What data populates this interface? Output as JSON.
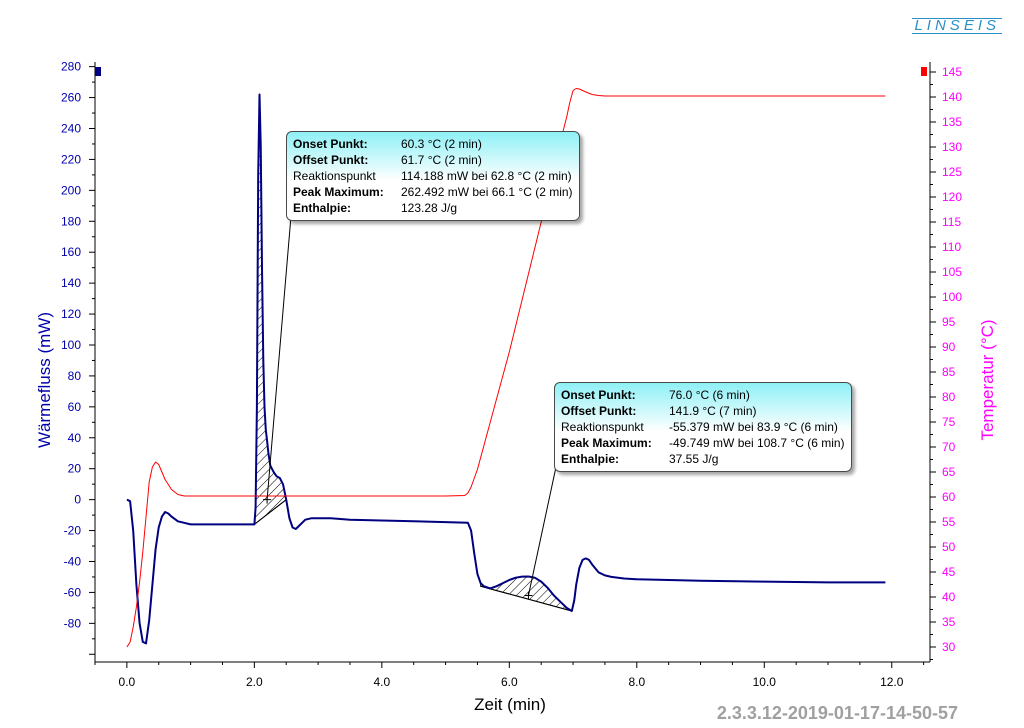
{
  "header": {
    "logo_text": "LINSEIS"
  },
  "footer": {
    "id_text": "2.3.3.12-2019-01-17-14-50-57"
  },
  "colors": {
    "heatflow": "#000080",
    "temperature": "#ff0000",
    "y1_axis": "#0000aa",
    "y2_axis": "#ff00ff",
    "callout": "#8ef0f6"
  },
  "annotations": [
    {
      "rows": [
        {
          "label": "Onset Punkt:",
          "value": "60.3 °C (2 min)",
          "bold": true
        },
        {
          "label": "Offset Punkt:",
          "value": "61.7 °C (2 min)",
          "bold": true
        },
        {
          "label": "Reaktionspunkt",
          "value": "114.188 mW bei 62.8 °C (2 min)",
          "bold": false
        },
        {
          "label": "Peak Maximum:",
          "value": "262.492 mW bei 66.1 °C (2 min)",
          "bold": true
        },
        {
          "label": "Enthalpie:",
          "value": "123.28 J/g",
          "bold": true
        }
      ]
    },
    {
      "rows": [
        {
          "label": "Onset Punkt:",
          "value": "76.0 °C (6 min)",
          "bold": true
        },
        {
          "label": "Offset Punkt:",
          "value": "141.9 °C (7 min)",
          "bold": true
        },
        {
          "label": "Reaktionspunkt",
          "value": "-55.379 mW bei 83.9 °C (6 min)",
          "bold": false
        },
        {
          "label": "Peak Maximum:",
          "value": "-49.749 mW bei 108.7 °C (6 min)",
          "bold": true
        },
        {
          "label": "Enthalpie:",
          "value": "37.55 J/g",
          "bold": true
        }
      ]
    }
  ],
  "chart_data": {
    "type": "line",
    "xlabel": "Zeit (min)",
    "ylabel": "Wärmefluss (mW)",
    "y2label": "Temperatur (°C)",
    "xlim": [
      -0.5,
      12.6
    ],
    "ylim": [
      -105,
      283
    ],
    "y2lim": [
      27,
      147
    ],
    "x_ticks": [
      0,
      2,
      4,
      6,
      8,
      10,
      12
    ],
    "x_tick_labels": [
      "0.0",
      "2.0",
      "4.0",
      "6.0",
      "8.0",
      "10.0",
      "12.0"
    ],
    "y_ticks": [
      -80,
      -60,
      -40,
      -20,
      0,
      20,
      40,
      60,
      80,
      100,
      120,
      140,
      160,
      180,
      200,
      220,
      240,
      260,
      280
    ],
    "y2_ticks": [
      30,
      35,
      40,
      45,
      50,
      55,
      60,
      65,
      70,
      75,
      80,
      85,
      90,
      95,
      100,
      105,
      110,
      115,
      120,
      125,
      130,
      135,
      140,
      145
    ],
    "grid": false,
    "series": [
      {
        "name": "Wärmefluss",
        "axis": "left",
        "x": [
          0,
          0.05,
          0.1,
          0.15,
          0.2,
          0.25,
          0.3,
          0.35,
          0.4,
          0.45,
          0.5,
          0.55,
          0.6,
          0.65,
          0.7,
          0.8,
          0.9,
          1.0,
          1.2,
          1.5,
          1.8,
          2.0,
          2.02,
          2.04,
          2.06,
          2.08,
          2.1,
          2.12,
          2.14,
          2.16,
          2.18,
          2.2,
          2.22,
          2.25,
          2.3,
          2.35,
          2.4,
          2.45,
          2.5,
          2.55,
          2.6,
          2.65,
          2.7,
          2.8,
          2.9,
          3.0,
          3.2,
          3.5,
          4.0,
          4.5,
          5.0,
          5.35,
          5.4,
          5.45,
          5.5,
          5.55,
          5.6,
          5.7,
          5.8,
          5.9,
          6.0,
          6.1,
          6.2,
          6.3,
          6.4,
          6.5,
          6.6,
          6.7,
          6.8,
          6.9,
          6.98,
          7.02,
          7.05,
          7.1,
          7.15,
          7.2,
          7.25,
          7.3,
          7.4,
          7.5,
          7.6,
          7.8,
          8.0,
          8.5,
          9.0,
          10.0,
          11.0,
          11.9
        ],
        "y": [
          0,
          -1,
          -20,
          -55,
          -80,
          -92,
          -93,
          -78,
          -55,
          -32,
          -18,
          -11,
          -8,
          -9,
          -11,
          -14,
          -15,
          -16,
          -16,
          -16,
          -16,
          -16,
          -5,
          60,
          210,
          262,
          230,
          150,
          90,
          60,
          45,
          38,
          30,
          22,
          18,
          15,
          14,
          10,
          0,
          -12,
          -18,
          -19,
          -17,
          -13,
          -12,
          -12,
          -12,
          -13,
          -13.5,
          -14,
          -14.5,
          -15,
          -20,
          -35,
          -48,
          -54,
          -56,
          -57.5,
          -56,
          -54,
          -52,
          -50.5,
          -49.8,
          -49.7,
          -50.5,
          -53,
          -57,
          -62,
          -66,
          -70,
          -72,
          -65,
          -55,
          -44,
          -39,
          -38,
          -39,
          -42,
          -47,
          -49,
          -50,
          -51,
          -51.5,
          -52,
          -52.5,
          -53,
          -53.5,
          -53.5
        ]
      },
      {
        "name": "Temperatur",
        "axis": "right",
        "x": [
          0,
          0.05,
          0.1,
          0.15,
          0.2,
          0.25,
          0.3,
          0.35,
          0.4,
          0.45,
          0.5,
          0.55,
          0.6,
          0.7,
          0.8,
          0.9,
          1.0,
          1.5,
          2.0,
          3.0,
          4.0,
          5.0,
          5.3,
          5.35,
          5.4,
          5.5,
          6.0,
          6.5,
          6.8,
          6.9,
          6.95,
          7.0,
          7.05,
          7.1,
          7.15,
          7.2,
          7.3,
          7.4,
          7.5,
          7.6,
          8.0,
          9.0,
          10.0,
          11.0,
          11.9
        ],
        "y": [
          30,
          31,
          34,
          38,
          43,
          49,
          56,
          63,
          66,
          67,
          66.5,
          65,
          63.5,
          61.5,
          60.5,
          60.2,
          60.2,
          60.2,
          60.2,
          60.2,
          60.2,
          60.2,
          60.3,
          60.8,
          62,
          65.5,
          89,
          115,
          131,
          136,
          139,
          141.3,
          141.7,
          141.6,
          141.3,
          141,
          140.5,
          140.3,
          140.2,
          140.2,
          140.2,
          140.2,
          140.2,
          140.2,
          140.2
        ]
      }
    ],
    "peaks": [
      {
        "start_x": 2.0,
        "start_y": -16,
        "end_x": 2.5,
        "end_y": 0,
        "max_x": 2.08,
        "max_y": 262.492,
        "react_x": 2.2,
        "react_y": 0
      },
      {
        "start_x": 5.55,
        "start_y": -56,
        "end_x": 6.98,
        "end_y": -72,
        "max_x": 6.3,
        "max_y": -49.749,
        "react_x": 6.3,
        "react_y": -62
      }
    ]
  }
}
